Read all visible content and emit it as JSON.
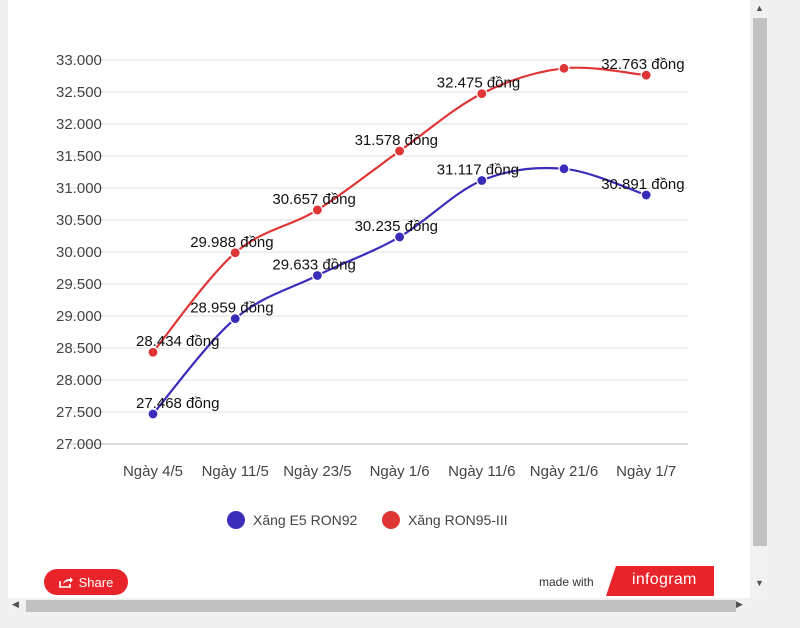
{
  "chart_data": {
    "type": "line",
    "categories": [
      "Ngày 4/5",
      "Ngày 11/5",
      "Ngày 23/5",
      "Ngày 1/6",
      "Ngày 11/6",
      "Ngày 21/6",
      "Ngày 1/7"
    ],
    "series": [
      {
        "name": "Xăng E5 RON92",
        "color": "#3b2dbb",
        "values": [
          27468,
          28959,
          29633,
          30235,
          31117,
          31300,
          30891
        ],
        "labels": [
          "27.468 đồng",
          "28.959 đồng",
          "29.633 đồng",
          "30.235 đồng",
          "31.117 đồng",
          "",
          "30.891 đồng"
        ]
      },
      {
        "name": "Xăng RON95-III",
        "color": "#e03535",
        "values": [
          28434,
          29988,
          30657,
          31578,
          32475,
          32870,
          32763
        ],
        "labels": [
          "28.434 đồng",
          "29.988 đồng",
          "30.657 đồng",
          "31.578 đồng",
          "32.475 đồng",
          "",
          "32.763 đồng"
        ]
      }
    ],
    "ylim": [
      27000,
      33000
    ],
    "yticks": [
      "27.000",
      "27.500",
      "28.000",
      "28.500",
      "29.000",
      "29.500",
      "30.000",
      "30.500",
      "31.000",
      "31.500",
      "32.000",
      "32.500",
      "33.000"
    ],
    "grid": true,
    "legend": "bottom"
  },
  "footer": {
    "share_label": "Share",
    "made_with": "made with",
    "brand": "infogram"
  },
  "colors": {
    "accent": "#e8232a"
  }
}
